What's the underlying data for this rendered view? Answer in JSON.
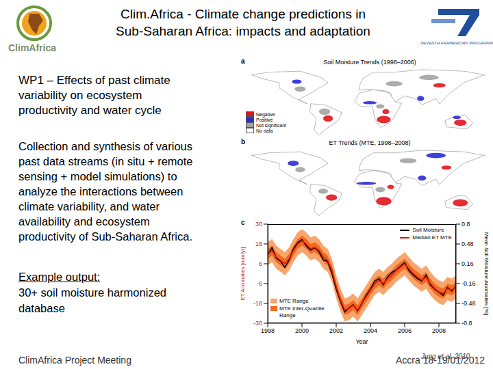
{
  "header": {
    "title_lines": [
      "Clim.Africa - Climate change predictions in",
      "Sub-Saharan Africa: impacts and adaptation"
    ],
    "left_logo_text": "ClimAfrica",
    "right_logo_text": "SEVENTH FRAMEWORK PROGRAMME"
  },
  "left_panel": {
    "heading_lines": [
      "WP1 – Effects of past climate",
      "variability on ecosystem",
      "productivity and water cycle"
    ],
    "body_lines": [
      "Collection and synthesis of various",
      "past data streams (in situ + remote",
      "sensing + model simulations) to",
      "analyze the interactions between",
      "climate variability, and water",
      "availability and ecosystem",
      "productivity of Sub-Saharan Africa."
    ],
    "example_label": "Example output:",
    "example_lines": [
      "30+ soil moisture harmonized",
      "database"
    ]
  },
  "maps": [
    {
      "panel_label": "a",
      "title": "Soil Moisture Trends (1998–2006)",
      "map_legend": [
        {
          "label": "Negative",
          "color": "#e3141c"
        },
        {
          "label": "Positive",
          "color": "#2a2ad8"
        },
        {
          "label": "Not significant",
          "color": "#a3a3a3"
        },
        {
          "label": "No data",
          "color": "#ffffff"
        }
      ]
    },
    {
      "panel_label": "b",
      "title": "ET Trends (MTE, 1998–2008)"
    }
  ],
  "chart_data": {
    "type": "line",
    "panel_label": "c",
    "xlabel": "Year",
    "ylabel": "ET Anomalies [mm/yr]",
    "y2label": "Mean Soil Moisture Anomalies [%]",
    "x": [
      1998,
      1998.25,
      1998.5,
      1998.75,
      1999,
      1999.25,
      1999.5,
      1999.75,
      2000,
      2000.25,
      2000.5,
      2000.75,
      2001,
      2001.25,
      2001.5,
      2001.75,
      2002,
      2002.25,
      2002.5,
      2002.75,
      2003,
      2003.25,
      2003.5,
      2003.75,
      2004,
      2004.25,
      2004.5,
      2004.75,
      2005,
      2005.25,
      2005.5,
      2005.75,
      2006,
      2006.25,
      2006.5,
      2006.75,
      2007,
      2007.25,
      2007.5,
      2007.75,
      2008,
      2008.25,
      2008.5,
      2008.75,
      2009
    ],
    "xlim": [
      1998,
      2009
    ],
    "xticks": [
      1998,
      2000,
      2002,
      2004,
      2006,
      2008
    ],
    "ylim": [
      -30,
      30
    ],
    "yticks": [
      -30,
      -18,
      -6,
      6,
      18,
      30
    ],
    "y2lim": [
      -0.8,
      0.8
    ],
    "y2ticks": [
      -0.8,
      -0.48,
      -0.16,
      0.16,
      0.48,
      0.8
    ],
    "series": [
      {
        "name": "MTE Range",
        "type": "band",
        "color": "#f9a66c",
        "lower": [
          5,
          7,
          3,
          1,
          -1,
          2,
          7,
          11,
          13,
          11,
          8,
          9,
          7,
          3,
          1,
          -5,
          -15,
          -23,
          -29,
          -28,
          -26,
          -29,
          -25,
          -21,
          -17,
          -13,
          -11,
          -13,
          -10,
          -8,
          -5,
          -3,
          -1,
          -4,
          -7,
          -9,
          -11,
          -9,
          -13,
          -16,
          -18,
          -19,
          -16,
          -17,
          -15
        ],
        "upper": [
          19,
          21,
          17,
          15,
          13,
          16,
          21,
          25,
          27,
          25,
          22,
          23,
          21,
          17,
          15,
          9,
          -1,
          -9,
          -15,
          -14,
          -12,
          -15,
          -11,
          -7,
          -3,
          1,
          3,
          1,
          4,
          6,
          9,
          11,
          13,
          10,
          7,
          5,
          3,
          5,
          1,
          -2,
          -4,
          -5,
          -2,
          -3,
          -1
        ]
      },
      {
        "name": "MTE Inter-Quartile Range",
        "type": "band",
        "color": "#f26a1f",
        "lower": [
          9,
          11,
          7,
          5,
          3,
          6,
          11,
          15,
          17,
          15,
          12,
          13,
          11,
          7,
          5,
          -1,
          -11,
          -19,
          -25,
          -24,
          -22,
          -25,
          -21,
          -17,
          -13,
          -9,
          -7,
          -9,
          -6,
          -4,
          -1,
          1,
          3,
          0,
          -3,
          -5,
          -7,
          -5,
          -9,
          -12,
          -14,
          -15,
          -12,
          -13,
          -11
        ],
        "upper": [
          15,
          17,
          13,
          11,
          9,
          12,
          17,
          21,
          23,
          21,
          18,
          19,
          17,
          13,
          11,
          5,
          -5,
          -13,
          -19,
          -18,
          -16,
          -19,
          -15,
          -11,
          -7,
          -3,
          -1,
          -3,
          0,
          2,
          5,
          7,
          9,
          6,
          3,
          1,
          -1,
          1,
          -3,
          -6,
          -8,
          -9,
          -6,
          -7,
          -5
        ]
      },
      {
        "name": "Soil Moisture",
        "color": "#000000",
        "axis": "y2",
        "values": [
          0.3,
          0.42,
          0.25,
          0.2,
          0.1,
          0.22,
          0.4,
          0.5,
          0.55,
          0.45,
          0.38,
          0.42,
          0.35,
          0.22,
          0.2,
          0.0,
          -0.25,
          -0.45,
          -0.62,
          -0.55,
          -0.5,
          -0.6,
          -0.48,
          -0.35,
          -0.25,
          -0.12,
          -0.08,
          -0.18,
          -0.05,
          0.02,
          0.06,
          0.12,
          0.18,
          0.05,
          -0.02,
          -0.08,
          -0.12,
          -0.02,
          -0.18,
          -0.25,
          -0.3,
          -0.35,
          -0.22,
          -0.28,
          -0.2
        ]
      },
      {
        "name": "Median ET MTE",
        "color": "#e0140f",
        "values": [
          12,
          14,
          10,
          8,
          6,
          9,
          14,
          18,
          20,
          18,
          15,
          16,
          14,
          10,
          8,
          2,
          -8,
          -16,
          -22,
          -21,
          -19,
          -22,
          -18,
          -14,
          -10,
          -6,
          -4,
          -6,
          -3,
          -1,
          2,
          4,
          6,
          3,
          0,
          -2,
          -4,
          -2,
          -6,
          -9,
          -11,
          -12,
          -9,
          -10,
          -8
        ]
      }
    ]
  },
  "footer": {
    "left": "ClimAfrica Project Meeting",
    "right": "Accra 18-19/01/2012",
    "citation": "Jung et al. 2010"
  }
}
